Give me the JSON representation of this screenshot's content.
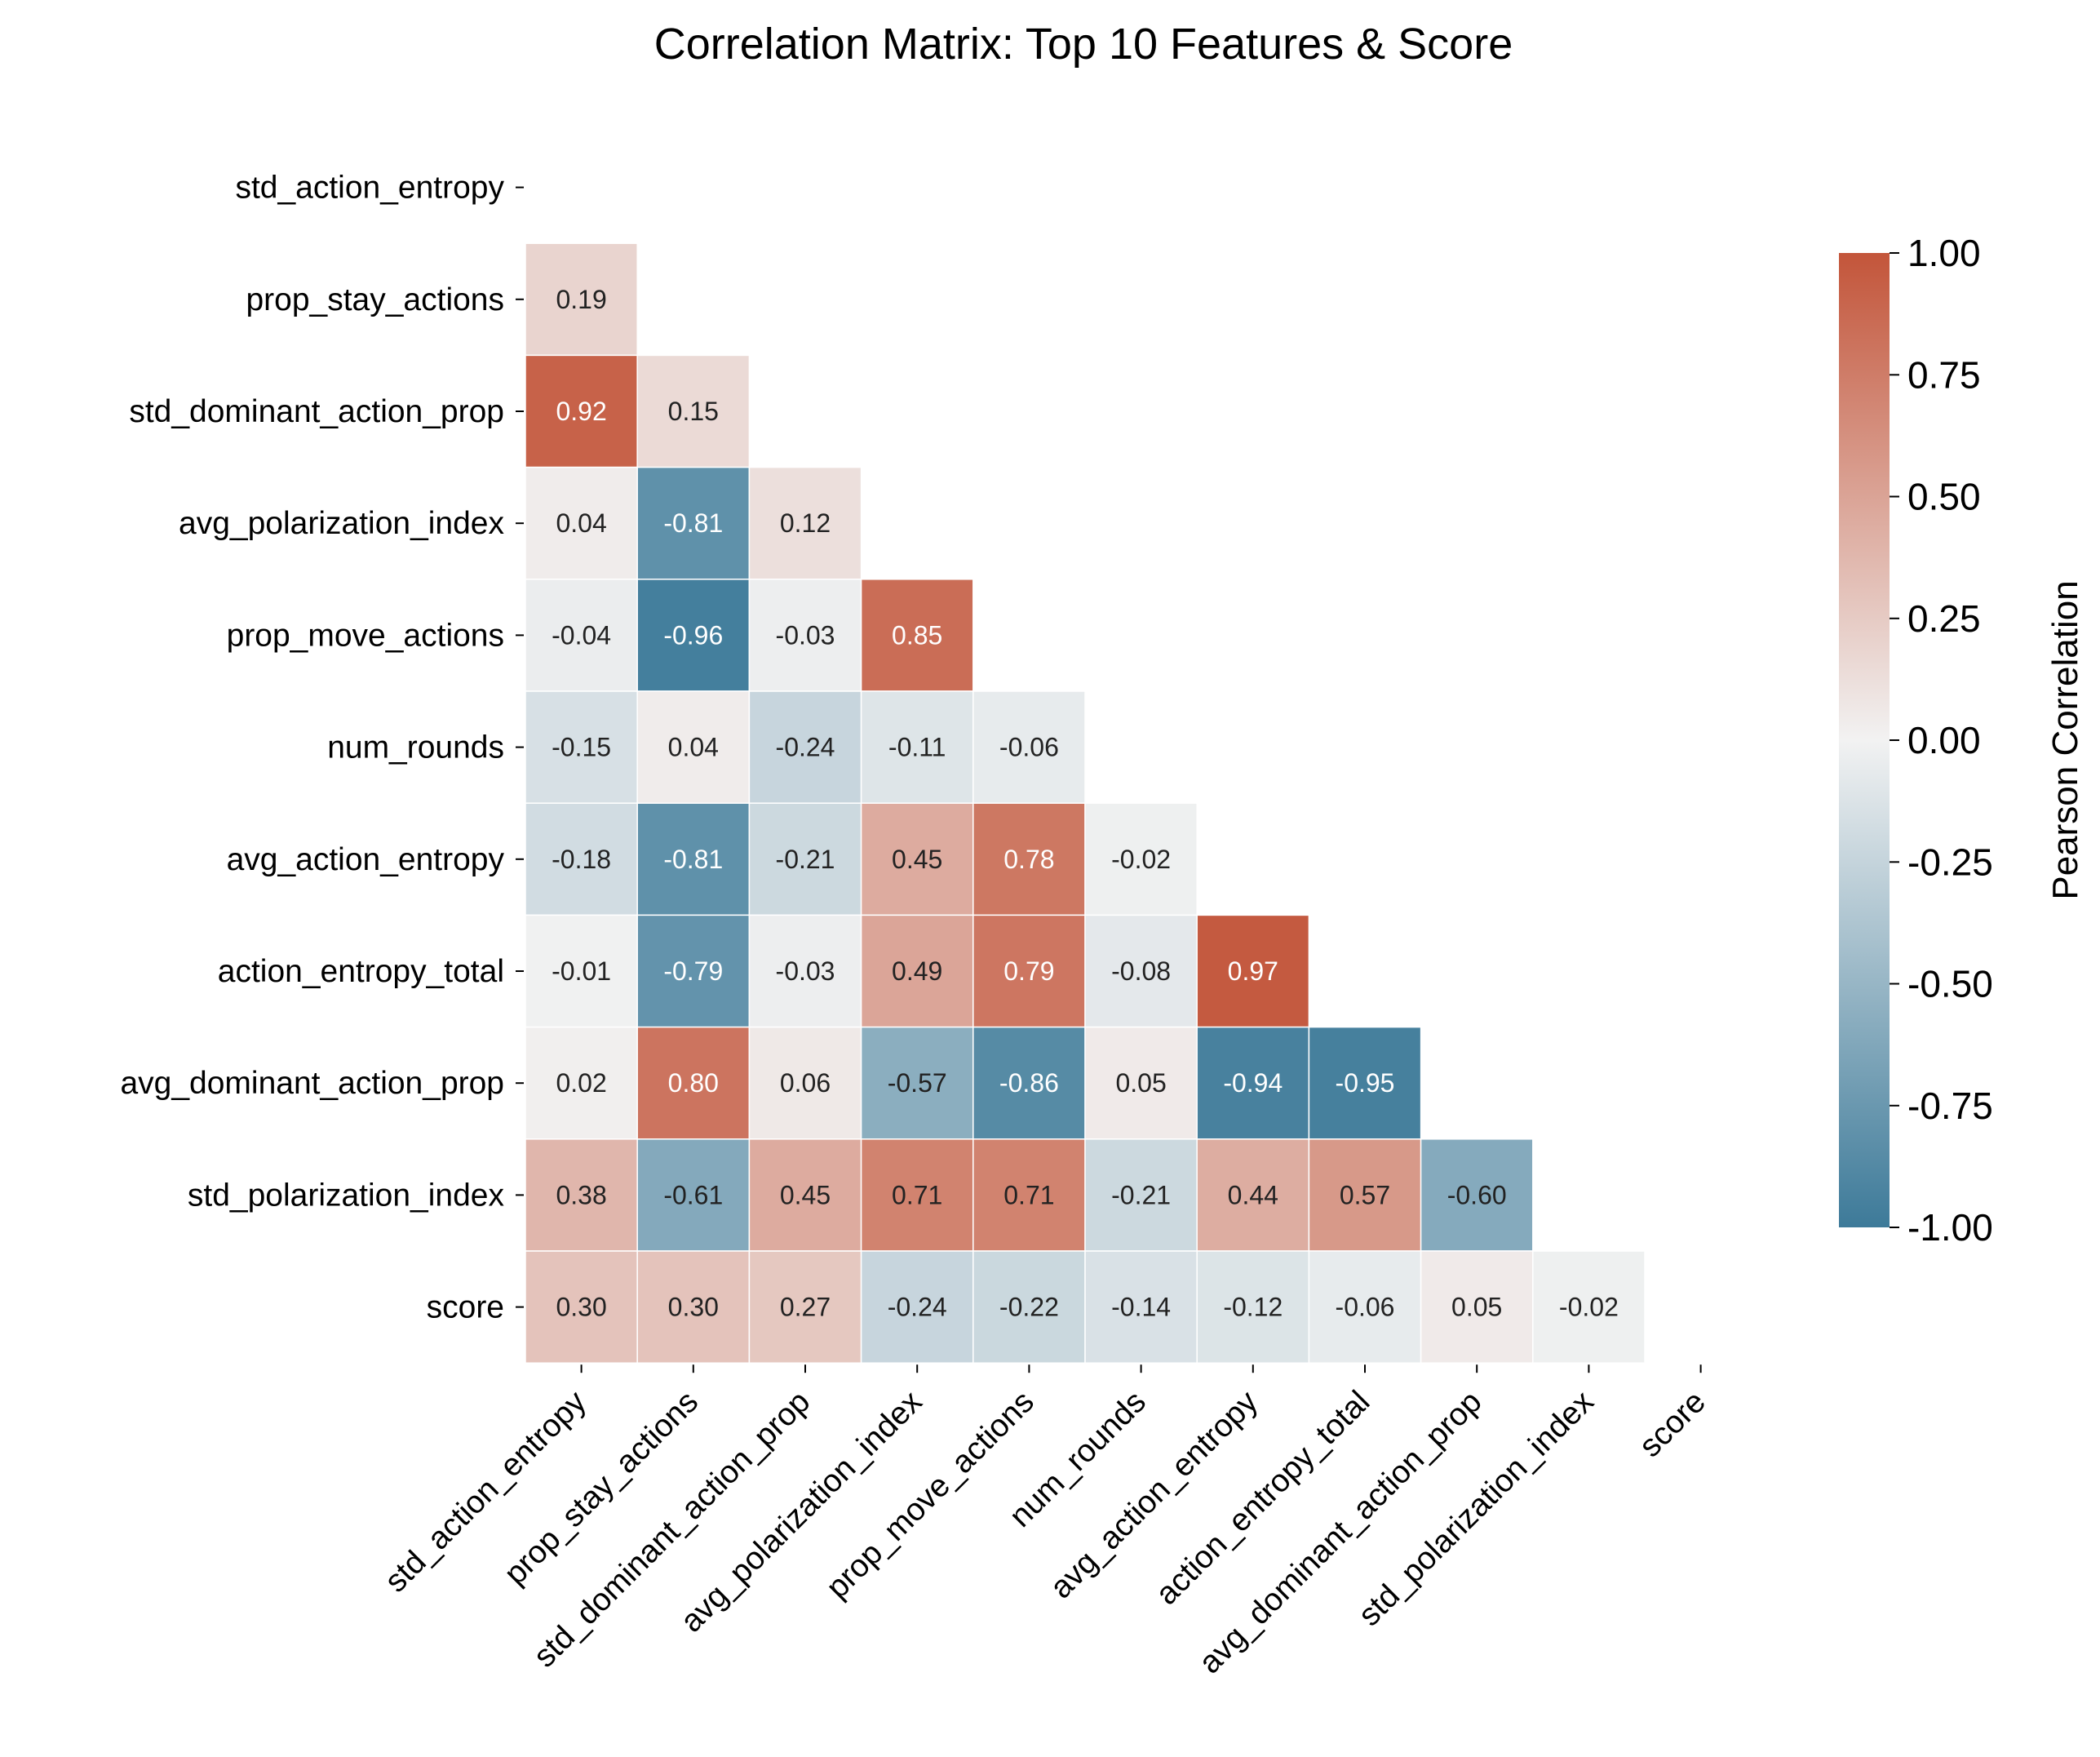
{
  "chart_data": {
    "type": "heatmap",
    "title": "Correlation Matrix: Top 10 Features & Score",
    "variables": [
      "std_action_entropy",
      "prop_stay_actions",
      "std_dominant_action_prop",
      "avg_polarization_index",
      "prop_move_actions",
      "num_rounds",
      "avg_action_entropy",
      "action_entropy_total",
      "avg_dominant_action_prop",
      "std_polarization_index",
      "score"
    ],
    "mask": "upper triangle including diagonal",
    "values": [
      [],
      [
        0.19
      ],
      [
        0.92,
        0.15
      ],
      [
        0.04,
        -0.81,
        0.12
      ],
      [
        -0.04,
        -0.96,
        -0.03,
        0.85
      ],
      [
        -0.15,
        0.04,
        -0.24,
        -0.11,
        -0.06
      ],
      [
        -0.18,
        -0.81,
        -0.21,
        0.45,
        0.78,
        -0.02
      ],
      [
        -0.01,
        -0.79,
        -0.03,
        0.49,
        0.79,
        -0.08,
        0.97
      ],
      [
        0.02,
        0.8,
        0.06,
        -0.57,
        -0.86,
        0.05,
        -0.94,
        -0.95
      ],
      [
        0.38,
        -0.61,
        0.45,
        0.71,
        0.71,
        -0.21,
        0.44,
        0.57,
        -0.6
      ],
      [
        0.3,
        0.3,
        0.27,
        -0.24,
        -0.22,
        -0.14,
        -0.12,
        -0.06,
        0.05,
        -0.02
      ]
    ],
    "value_format": "2 decimals",
    "colorbar": {
      "label": "Pearson Correlation",
      "range": [
        -1.0,
        1.0
      ],
      "ticks": [
        "1.00",
        "0.75",
        "0.50",
        "0.25",
        "0.00",
        "-0.25",
        "-0.50",
        "-0.75",
        "-1.00"
      ],
      "low_color": "#3d7a99",
      "mid_color": "#f2f2f2",
      "high_color": "#c3553a"
    },
    "grid": false,
    "cell_border_color": "#ffffff"
  }
}
